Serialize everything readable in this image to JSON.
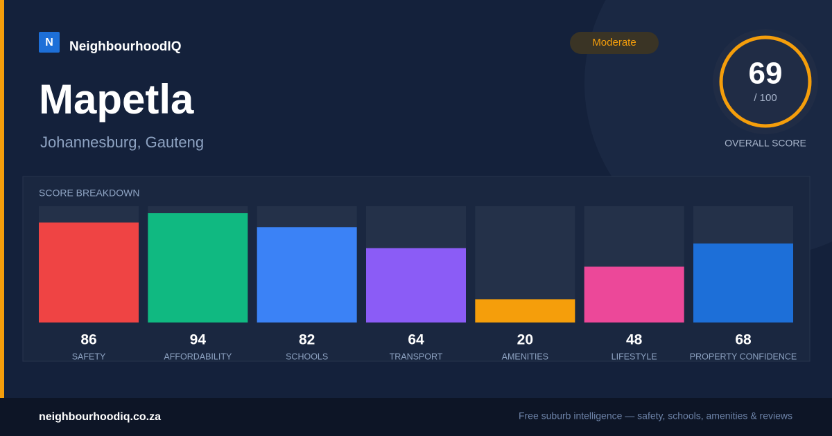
{
  "brand": "NeighbourhoodIQ",
  "logo": "N",
  "badge": "Moderate",
  "location": {
    "name": "Mapetla",
    "region": "Johannesburg, Gauteng"
  },
  "overall": {
    "score": 69,
    "out_of": "/ 100",
    "caption": "OVERALL SCORE"
  },
  "chart_data": {
    "type": "bar",
    "title": "SCORE BREAKDOWN",
    "categories": [
      "SAFETY",
      "AFFORDABILITY",
      "SCHOOLS",
      "TRANSPORT",
      "AMENITIES",
      "LIFESTYLE",
      "PROPERTY CONFIDENCE"
    ],
    "values": [
      86,
      94,
      82,
      64,
      20,
      48,
      68
    ],
    "colors": [
      "#ef4444",
      "#10b981",
      "#3b82f6",
      "#8b5cf6",
      "#f59e0b",
      "#ec4899",
      "#1d6fd8"
    ],
    "ylim": [
      0,
      100
    ]
  },
  "footer": {
    "url": "neighbourhoodiq.co.za",
    "tagline": "Free suburb intelligence — safety, schools, amenities & reviews"
  }
}
